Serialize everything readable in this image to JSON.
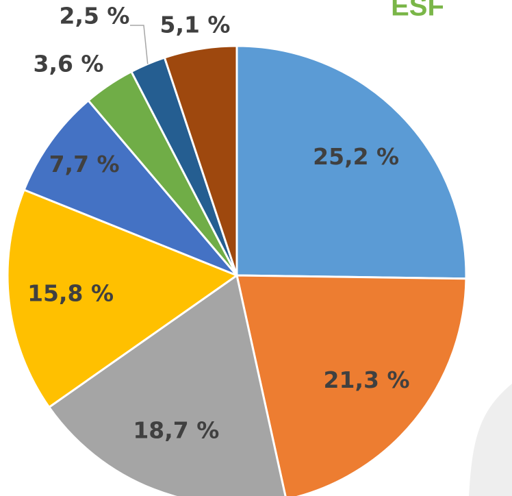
{
  "chart_data": {
    "type": "pie",
    "title": "ESF",
    "values": [
      25.2,
      21.3,
      18.7,
      15.8,
      7.7,
      3.6,
      2.5,
      5.1
    ],
    "value_labels": [
      "25,2 %",
      "21,3 %",
      "18,7 %",
      "15,8 %",
      "7,7 %",
      "3,6 %",
      "2,5 %",
      "5,1 %"
    ],
    "colors": [
      "#5b9bd5",
      "#ed7d31",
      "#a5a5a5",
      "#ffc000",
      "#4472c4",
      "#70ad47",
      "#255e91",
      "#9e480e"
    ]
  }
}
